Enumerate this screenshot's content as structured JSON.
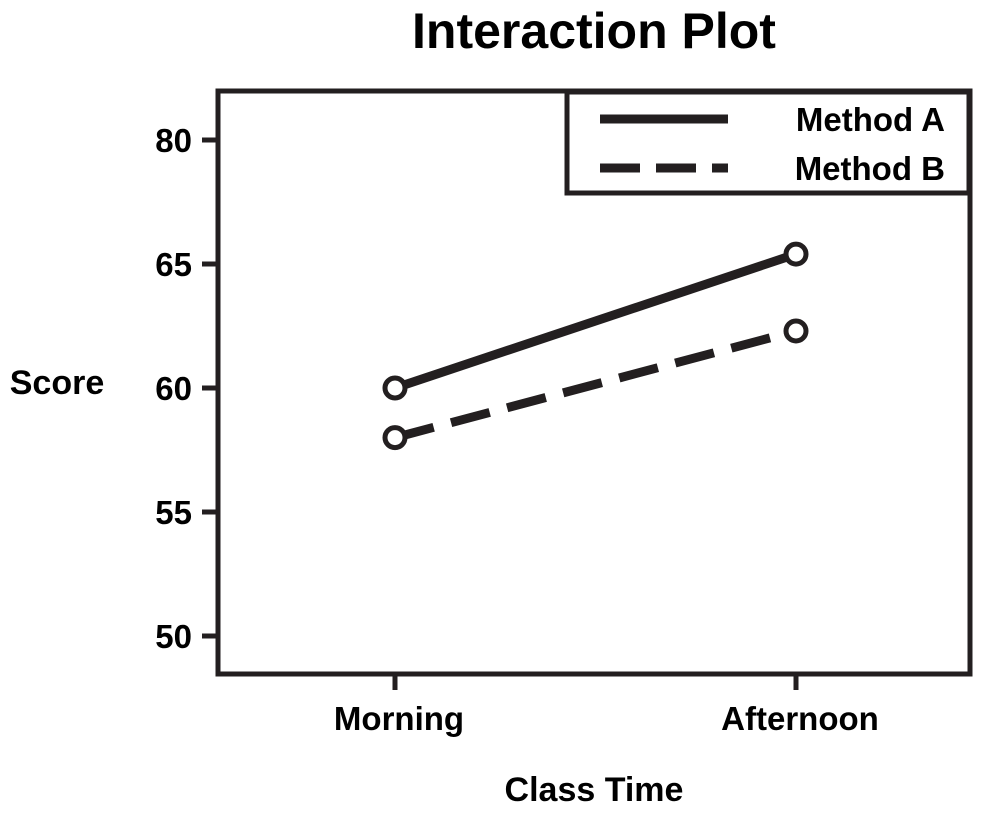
{
  "chart_data": {
    "type": "line",
    "title": "Interaction Plot",
    "xlabel": "Class Time",
    "ylabel": "Score",
    "categories": [
      "Morning",
      "Afternoon"
    ],
    "ylim": [
      48,
      82
    ],
    "y_axis_labels": [
      {
        "label": "50",
        "value": 50
      },
      {
        "label": "55",
        "value": 55
      },
      {
        "label": "60",
        "value": 60
      },
      {
        "label": "65",
        "value": 65
      },
      {
        "label": "80",
        "value": 80
      }
    ],
    "series": [
      {
        "name": "Method A",
        "values": [
          60,
          66.2
        ],
        "line_style": "solid",
        "marker": "open-circle"
      },
      {
        "name": "Method B",
        "values": [
          58,
          62.3
        ],
        "line_style": "dashed",
        "marker": "open-circle"
      }
    ],
    "grid": false,
    "legend_position": "top-right",
    "color": "#231f20"
  }
}
